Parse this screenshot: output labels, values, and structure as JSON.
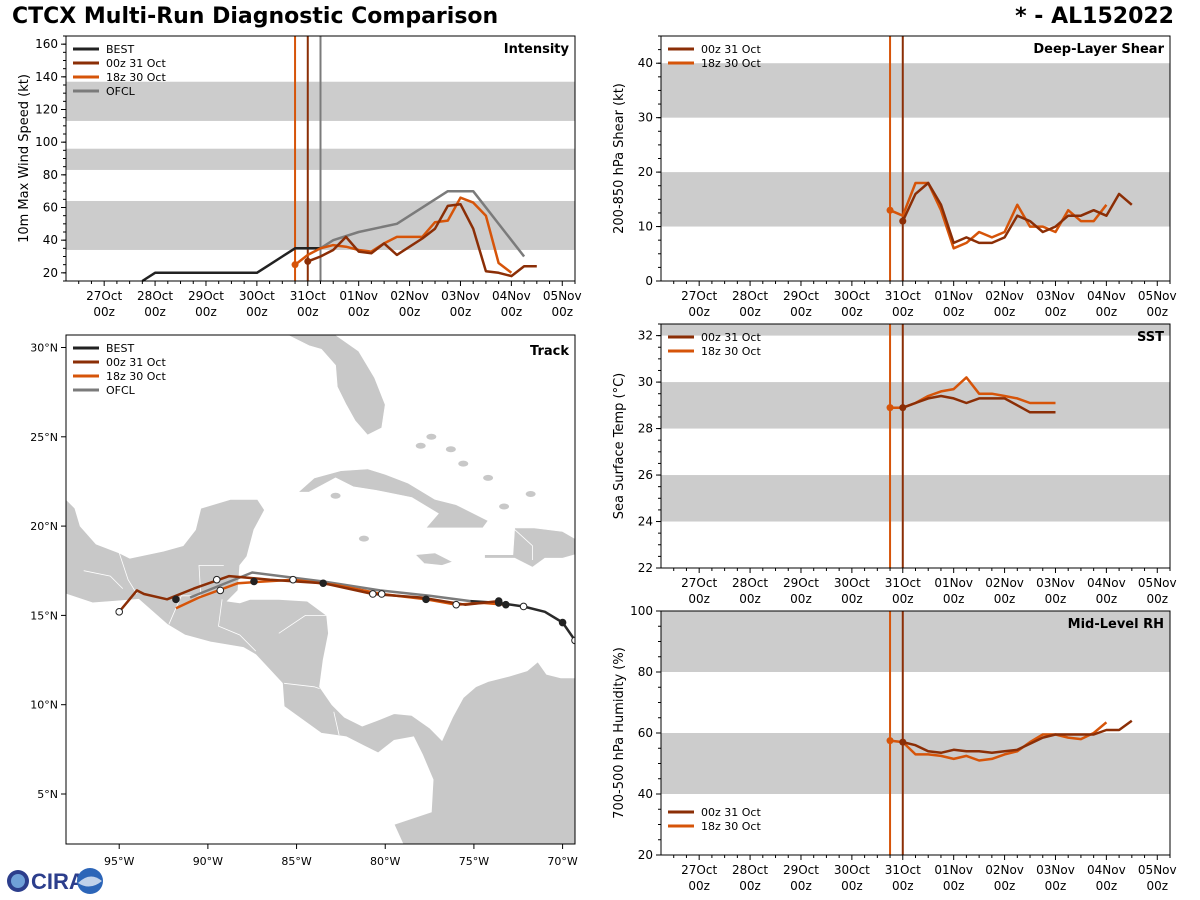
{
  "header": {
    "title": "CTCX Multi-Run Diagnostic Comparison",
    "storm_id": "* - AL152022"
  },
  "logo_text": "CIRA",
  "colors": {
    "best": "#222222",
    "run00z": "#8b2e06",
    "run18z": "#d65409",
    "ofcl": "#7b7b7b",
    "band": "#cccccc",
    "land": "#c8c8c8",
    "track_best": "#2a2a2a"
  },
  "time_axis": {
    "ticks": [
      {
        "day": "27Oct",
        "hour": "00z"
      },
      {
        "day": "28Oct",
        "hour": "00z"
      },
      {
        "day": "29Oct",
        "hour": "00z"
      },
      {
        "day": "30Oct",
        "hour": "00z"
      },
      {
        "day": "31Oct",
        "hour": "00z"
      },
      {
        "day": "01Nov",
        "hour": "00z"
      },
      {
        "day": "02Nov",
        "hour": "00z"
      },
      {
        "day": "03Nov",
        "hour": "00z"
      },
      {
        "day": "04Nov",
        "hour": "00z"
      },
      {
        "day": "05Nov",
        "hour": "00z"
      }
    ],
    "units": "days since 27Oct 00z"
  },
  "chart_data": [
    {
      "id": "intensity",
      "type": "line",
      "title": "Intensity",
      "ylabel": "10m Max Wind Speed (kt)",
      "ylim": [
        15,
        165
      ],
      "yticks": [
        20,
        40,
        60,
        80,
        100,
        120,
        140,
        160
      ],
      "xlim": [
        -0.75,
        9.25
      ],
      "bands": [
        [
          34,
          64
        ],
        [
          83,
          96
        ],
        [
          113,
          137
        ]
      ],
      "vlines": [
        {
          "x": 3.75,
          "color": "run18z"
        },
        {
          "x": 4.0,
          "color": "run00z"
        },
        {
          "x": 4.25,
          "color": "ofcl"
        }
      ],
      "legend": {
        "position": "top-left",
        "entries": [
          {
            "label": "BEST",
            "color": "best"
          },
          {
            "label": "00z 31 Oct",
            "color": "run00z"
          },
          {
            "label": "18z 30 Oct",
            "color": "run18z"
          },
          {
            "label": "OFCL",
            "color": "ofcl"
          }
        ]
      },
      "series": [
        {
          "name": "BEST",
          "color": "best",
          "x": [
            0.75,
            1.0,
            1.25,
            1.5,
            1.75,
            2.0,
            2.25,
            2.5,
            2.75,
            3.0,
            3.25,
            3.5,
            3.75,
            4.0,
            4.25
          ],
          "y": [
            15,
            20,
            20,
            20,
            20,
            20,
            20,
            20,
            20,
            20,
            25,
            30,
            35,
            35,
            35
          ]
        },
        {
          "name": "OFCL",
          "color": "ofcl",
          "x": [
            4.25,
            4.5,
            5.0,
            5.75,
            6.75,
            7.25,
            8.25
          ],
          "y": [
            35,
            40,
            45,
            50,
            70,
            70,
            30
          ]
        },
        {
          "name": "18z 30 Oct",
          "color": "run18z",
          "marker_first": true,
          "x": [
            3.75,
            4.0,
            4.25,
            4.5,
            4.75,
            5.0,
            5.25,
            5.5,
            5.75,
            6.0,
            6.25,
            6.5,
            6.75,
            7.0,
            7.25,
            7.5,
            7.75,
            8.0
          ],
          "y": [
            25,
            31,
            35,
            37,
            36,
            34,
            33,
            38,
            42,
            42,
            42,
            51,
            52,
            66,
            63,
            55,
            26,
            20
          ]
        },
        {
          "name": "00z 31 Oct",
          "color": "run00z",
          "marker_first": true,
          "x": [
            4.0,
            4.25,
            4.5,
            4.75,
            5.0,
            5.25,
            5.5,
            5.75,
            6.0,
            6.25,
            6.5,
            6.75,
            7.0,
            7.25,
            7.5,
            7.75,
            8.0,
            8.25,
            8.5
          ],
          "y": [
            27,
            30,
            34,
            42,
            33,
            32,
            38,
            31,
            36,
            41,
            47,
            61,
            62,
            47,
            21,
            20,
            18,
            24,
            24
          ]
        }
      ]
    },
    {
      "id": "shear",
      "type": "line",
      "title": "Deep-Layer Shear",
      "ylabel": "200-850 hPa Shear (kt)",
      "ylim": [
        0,
        45
      ],
      "yticks": [
        0,
        10,
        20,
        30,
        40
      ],
      "xlim": [
        -0.75,
        9.25
      ],
      "bands": [
        [
          10,
          20
        ],
        [
          30,
          40
        ]
      ],
      "vlines": [
        {
          "x": 3.75,
          "color": "run18z"
        },
        {
          "x": 4.0,
          "color": "run00z"
        }
      ],
      "legend": {
        "position": "top-left",
        "entries": [
          {
            "label": "00z 31 Oct",
            "color": "run00z"
          },
          {
            "label": "18z 30 Oct",
            "color": "run18z"
          }
        ]
      },
      "series": [
        {
          "name": "18z 30 Oct",
          "color": "run18z",
          "marker_first": true,
          "x": [
            3.75,
            4.0,
            4.25,
            4.5,
            4.75,
            5.0,
            5.25,
            5.5,
            5.75,
            6.0,
            6.25,
            6.5,
            6.75,
            7.0,
            7.25,
            7.5,
            7.75,
            8.0
          ],
          "y": [
            13,
            12,
            18,
            18,
            13,
            6,
            7,
            9,
            8,
            9,
            14,
            10,
            10,
            9,
            13,
            11,
            11,
            14
          ]
        },
        {
          "name": "00z 31 Oct",
          "color": "run00z",
          "marker_first": true,
          "x": [
            4.0,
            4.25,
            4.5,
            4.75,
            5.0,
            5.25,
            5.5,
            5.75,
            6.0,
            6.25,
            6.5,
            6.75,
            7.0,
            7.25,
            7.5,
            7.75,
            8.0,
            8.25,
            8.5
          ],
          "y": [
            11,
            16,
            18,
            14,
            7,
            8,
            7,
            7,
            8,
            12,
            11,
            9,
            10,
            12,
            12,
            13,
            12,
            16,
            14
          ]
        }
      ]
    },
    {
      "id": "sst",
      "type": "line",
      "title": "SST",
      "ylabel": "Sea Surface Temp (°C)",
      "ylim": [
        22,
        32.5
      ],
      "yticks": [
        22,
        24,
        26,
        28,
        30,
        32
      ],
      "xlim": [
        -0.75,
        9.25
      ],
      "bands": [
        [
          24,
          26
        ],
        [
          28,
          30
        ],
        [
          32,
          34
        ]
      ],
      "vlines": [
        {
          "x": 3.75,
          "color": "run18z"
        },
        {
          "x": 4.0,
          "color": "run00z"
        }
      ],
      "legend": {
        "position": "top-left",
        "entries": [
          {
            "label": "00z 31 Oct",
            "color": "run00z"
          },
          {
            "label": "18z 30 Oct",
            "color": "run18z"
          }
        ]
      },
      "series": [
        {
          "name": "18z 30 Oct",
          "color": "run18z",
          "marker_first": true,
          "x": [
            3.75,
            4.0,
            4.25,
            4.5,
            4.75,
            5.0,
            5.25,
            5.5,
            5.75,
            6.0,
            6.25,
            6.5,
            6.75,
            7.0
          ],
          "y": [
            28.9,
            28.9,
            29.1,
            29.4,
            29.6,
            29.7,
            30.2,
            29.5,
            29.5,
            29.4,
            29.3,
            29.1,
            29.1,
            29.1
          ]
        },
        {
          "name": "00z 31 Oct",
          "color": "run00z",
          "marker_first": true,
          "x": [
            4.0,
            4.25,
            4.5,
            4.75,
            5.0,
            5.25,
            5.5,
            5.75,
            6.0,
            6.25,
            6.5,
            6.75,
            7.0
          ],
          "y": [
            28.9,
            29.1,
            29.3,
            29.4,
            29.3,
            29.1,
            29.3,
            29.3,
            29.3,
            29.0,
            28.7,
            28.7,
            28.7
          ]
        }
      ]
    },
    {
      "id": "rh",
      "type": "line",
      "title": "Mid-Level RH",
      "ylabel": "700-500 hPa Humidity (%)",
      "ylim": [
        20,
        100
      ],
      "yticks": [
        20,
        40,
        60,
        80,
        100
      ],
      "xlim": [
        -0.75,
        9.25
      ],
      "bands": [
        [
          40,
          60
        ],
        [
          80,
          100
        ]
      ],
      "vlines": [
        {
          "x": 3.75,
          "color": "run18z"
        },
        {
          "x": 4.0,
          "color": "run00z"
        }
      ],
      "legend": {
        "position": "bottom-left",
        "entries": [
          {
            "label": "00z 31 Oct",
            "color": "run00z"
          },
          {
            "label": "18z 30 Oct",
            "color": "run18z"
          }
        ]
      },
      "series": [
        {
          "name": "18z 30 Oct",
          "color": "run18z",
          "marker_first": true,
          "x": [
            3.75,
            4.0,
            4.25,
            4.5,
            4.75,
            5.0,
            5.25,
            5.5,
            5.75,
            6.0,
            6.25,
            6.5,
            6.75,
            7.0,
            7.25,
            7.5,
            7.75,
            8.0
          ],
          "y": [
            57.5,
            57,
            53,
            53,
            52.5,
            51.5,
            52.5,
            51,
            51.5,
            53,
            54,
            57,
            59.5,
            59.5,
            58.5,
            58,
            60,
            63.5
          ]
        },
        {
          "name": "00z 31 Oct",
          "color": "run00z",
          "marker_first": true,
          "x": [
            4.0,
            4.25,
            4.5,
            4.75,
            5.0,
            5.25,
            5.5,
            5.75,
            6.0,
            6.25,
            6.5,
            6.75,
            7.0,
            7.25,
            7.5,
            7.75,
            8.0,
            8.25,
            8.5
          ],
          "y": [
            57,
            56,
            54,
            53.5,
            54.5,
            54,
            54,
            53.5,
            54,
            54.5,
            56.5,
            58.5,
            59.5,
            59.5,
            59.5,
            59.5,
            61,
            61,
            64
          ]
        }
      ]
    },
    {
      "id": "track",
      "type": "scatter",
      "title": "Track",
      "xlim": [
        -98,
        -69.3
      ],
      "ylim": [
        2.2,
        30.7
      ],
      "xticks": [
        {
          "value": -95,
          "label": "95°W"
        },
        {
          "value": -90,
          "label": "90°W"
        },
        {
          "value": -85,
          "label": "85°W"
        },
        {
          "value": -80,
          "label": "80°W"
        },
        {
          "value": -75,
          "label": "75°W"
        },
        {
          "value": -70,
          "label": "70°W"
        }
      ],
      "yticks": [
        {
          "value": 5,
          "label": "5°N"
        },
        {
          "value": 10,
          "label": "10°N"
        },
        {
          "value": 15,
          "label": "15°N"
        },
        {
          "value": 20,
          "label": "20°N"
        },
        {
          "value": 25,
          "label": "25°N"
        },
        {
          "value": 30,
          "label": "30°N"
        }
      ],
      "legend": {
        "position": "top-left",
        "entries": [
          {
            "label": "BEST",
            "color": "best"
          },
          {
            "label": "00z 31 Oct",
            "color": "run00z"
          },
          {
            "label": "18z 30 Oct",
            "color": "run18z"
          },
          {
            "label": "OFCL",
            "color": "ofcl"
          }
        ]
      },
      "series": [
        {
          "name": "BEST",
          "color": "track_best",
          "lon": [
            -69.3,
            -70.0,
            -71.0,
            -72.2,
            -73.6,
            -75.2
          ],
          "lat": [
            13.6,
            14.6,
            15.2,
            15.5,
            15.7,
            15.8
          ],
          "markers": [
            {
              "lon": -69.3,
              "lat": 13.6,
              "fill": "open"
            },
            {
              "lon": -70.0,
              "lat": 14.6,
              "fill": "solid"
            },
            {
              "lon": -72.2,
              "lat": 15.5,
              "fill": "open"
            },
            {
              "lon": -73.6,
              "lat": 15.7,
              "fill": "solid"
            }
          ]
        },
        {
          "name": "OFCL",
          "color": "ofcl",
          "lon": [
            -75.2,
            -77.5,
            -80.3,
            -83.5,
            -87.5,
            -91.0
          ],
          "lat": [
            15.8,
            16.1,
            16.4,
            16.9,
            17.4,
            16.0
          ],
          "markers": []
        },
        {
          "name": "18z 30 Oct",
          "color": "run18z",
          "lon": [
            -73.2,
            -74.5,
            -76.0,
            -77.7,
            -80.2,
            -82.8,
            -85.2,
            -88.3,
            -90.5,
            -91.8
          ],
          "lat": [
            15.6,
            15.7,
            15.6,
            15.9,
            16.2,
            16.7,
            17.0,
            16.8,
            16.0,
            15.4
          ],
          "markers": [
            {
              "lon": -73.2,
              "lat": 15.6,
              "fill": "solid"
            },
            {
              "lon": -77.7,
              "lat": 15.9,
              "fill": "solid"
            },
            {
              "lon": -80.2,
              "lat": 16.2,
              "fill": "open"
            },
            {
              "lon": -85.2,
              "lat": 17.0,
              "fill": "open"
            },
            {
              "lon": -89.3,
              "lat": 16.4,
              "fill": "open"
            }
          ]
        },
        {
          "name": "00z 31 Oct",
          "color": "run00z",
          "lon": [
            -73.6,
            -75.5,
            -78.0,
            -80.7,
            -83.5,
            -86.5,
            -88.8,
            -90.8,
            -92.3,
            -93.6,
            -94.0,
            -95.0
          ],
          "lat": [
            15.8,
            15.6,
            16.0,
            16.2,
            16.8,
            17.0,
            17.2,
            16.5,
            15.9,
            16.2,
            16.4,
            15.2
          ],
          "markers": [
            {
              "lon": -73.6,
              "lat": 15.8,
              "fill": "solid"
            },
            {
              "lon": -76.0,
              "lat": 15.6,
              "fill": "open"
            },
            {
              "lon": -80.7,
              "lat": 16.2,
              "fill": "open"
            },
            {
              "lon": -83.5,
              "lat": 16.8,
              "fill": "solid"
            },
            {
              "lon": -87.4,
              "lat": 16.9,
              "fill": "solid"
            },
            {
              "lon": -89.5,
              "lat": 17.0,
              "fill": "open"
            },
            {
              "lon": -91.8,
              "lat": 15.9,
              "fill": "solid"
            },
            {
              "lon": -95.0,
              "lat": 15.2,
              "fill": "open"
            }
          ]
        }
      ]
    }
  ]
}
